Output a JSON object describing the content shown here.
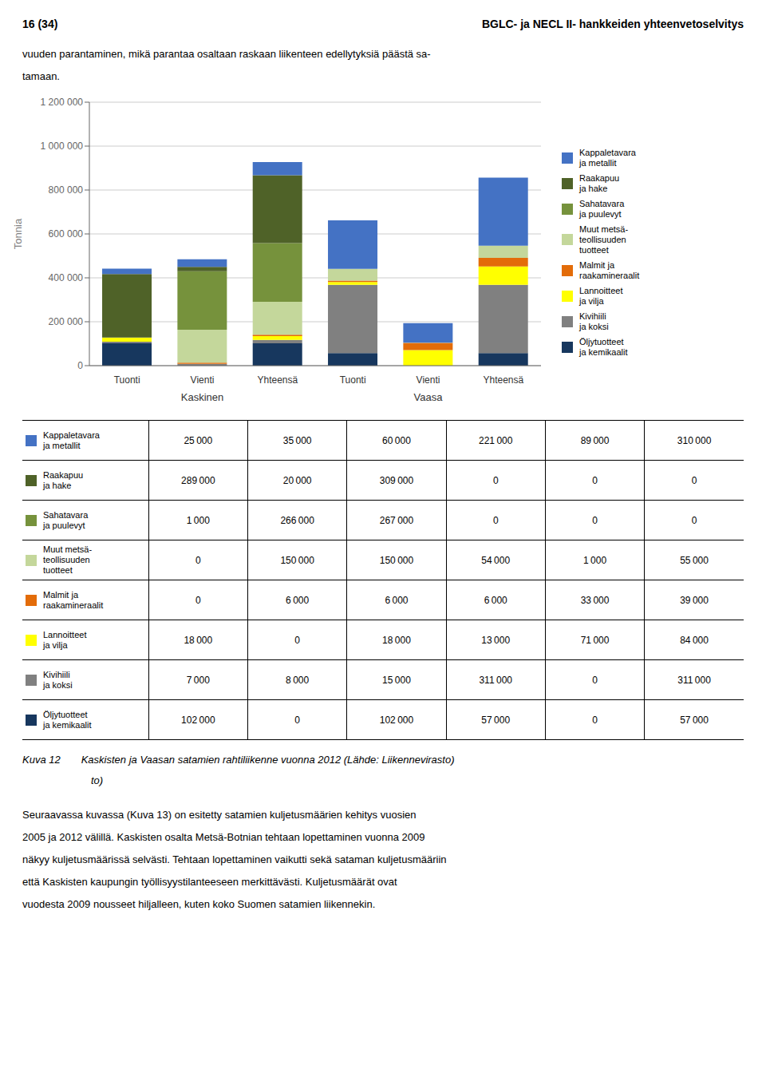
{
  "page": {
    "header_title": "BGLC- ja NECL II- hankkeiden yhteenvetoselvitys",
    "page_num": "16 (34)",
    "intro_lines": [
      "vuuden parantaminen, mikä parantaa osaltaan raskaan liikenteen edellytyksiä päästä sa-",
      "tamaan."
    ],
    "caption_lines": [
      "Kuva 12  Kaskisten ja Vaasan satamien rahtiliikenne vuonna 2012 (Lähde: Liikennevirasto)",
      "to)"
    ],
    "body_lines": [
      "Seuraavassa kuvassa (Kuva 13) on esitetty satamien kuljetusmäärien kehitys vuosien",
      "2005 ja 2012 välillä. Kaskisten osalta Metsä-Botnian tehtaan lopettaminen vuonna 2009",
      "näkyy kuljetusmäärissä selvästi. Tehtaan lopettaminen vaikutti sekä sataman kuljetusmääriin",
      "että Kaskisten kaupungin työllisyystilanteeseen merkittävästi. Kuljetusmäärät ovat",
      "vuodesta 2009 nousseet hiljalleen, kuten koko Suomen satamien liikennekin."
    ]
  },
  "chart_data": {
    "type": "bar",
    "stacked": true,
    "grid": true,
    "ylabel": "Tonnia",
    "categories": [
      "Tuonti",
      "Vienti",
      "Yhteensä",
      "Tuonti",
      "Vienti",
      "Yhteensä"
    ],
    "annotations": [
      "Kaskinen",
      "Vaasa"
    ],
    "ylim": [
      0,
      1200000
    ],
    "yticks": [
      0,
      {
        "value": 200000,
        "label": "200 000"
      },
      {
        "value": 400000,
        "label": "400 000"
      },
      {
        "value": 600000,
        "label": "600 000"
      },
      {
        "value": 800000,
        "label": "800 000"
      },
      {
        "value": 1000000,
        "label": "1 000 000"
      },
      {
        "value": 1200000,
        "label": "1 200 000"
      }
    ],
    "series": [
      {
        "name": "Kappaletavara\nja metallit",
        "color": "#4472C4",
        "values": [
          25000,
          35000,
          60000,
          221000,
          89000,
          310000
        ],
        "value_labels": [
          "25 000",
          "35 000",
          "60 000",
          "221 000",
          "89 000",
          "310 000"
        ]
      },
      {
        "name": "Raakapuu\nja hake",
        "color": "#4F6228",
        "values": [
          289000,
          20000,
          309000,
          0,
          0,
          0
        ],
        "value_labels": [
          "289 000",
          "20 000",
          "309 000",
          "0",
          "0",
          "0"
        ]
      },
      {
        "name": "Sahatavara\nja puulevyt",
        "color": "#76923C",
        "values": [
          1000,
          266000,
          267000,
          0,
          0,
          0
        ],
        "value_labels": [
          "1 000",
          "266 000",
          "267 000",
          "0",
          "0",
          "0"
        ]
      },
      {
        "name": "Muut metsä-\nteollisuuden\ntuotteet",
        "color": "#C4D79B",
        "values": [
          0,
          150000,
          150000,
          54000,
          1000,
          55000
        ],
        "value_labels": [
          "0",
          "150 000",
          "150 000",
          "54 000",
          "1 000",
          "55 000"
        ]
      },
      {
        "name": "Malmit ja\nraakamineraalit",
        "color": "#E36C09",
        "values": [
          0,
          6000,
          6000,
          6000,
          33000,
          39000
        ],
        "value_labels": [
          "0",
          "6 000",
          "6 000",
          "6 000",
          "33 000",
          "39 000"
        ]
      },
      {
        "name": "Lannoitteet\nja vilja",
        "color": "#FFFF00",
        "values": [
          18000,
          0,
          18000,
          13000,
          71000,
          84000
        ],
        "value_labels": [
          "18 000",
          "0",
          "18 000",
          "13 000",
          "71 000",
          "84 000"
        ]
      },
      {
        "name": "Kivihiili\nja koksi",
        "color": "#808080",
        "values": [
          7000,
          8000,
          15000,
          311000,
          0,
          311000
        ],
        "value_labels": [
          "7 000",
          "8 000",
          "15 000",
          "311 000",
          "0",
          "311 000"
        ]
      },
      {
        "name": "Öljytuotteet\nja kemikaalit",
        "color": "#17375E",
        "values": [
          102000,
          0,
          102000,
          57000,
          0,
          57000
        ],
        "value_labels": [
          "102 000",
          "0",
          "102 000",
          "57 000",
          "0",
          "57 000"
        ]
      }
    ]
  }
}
